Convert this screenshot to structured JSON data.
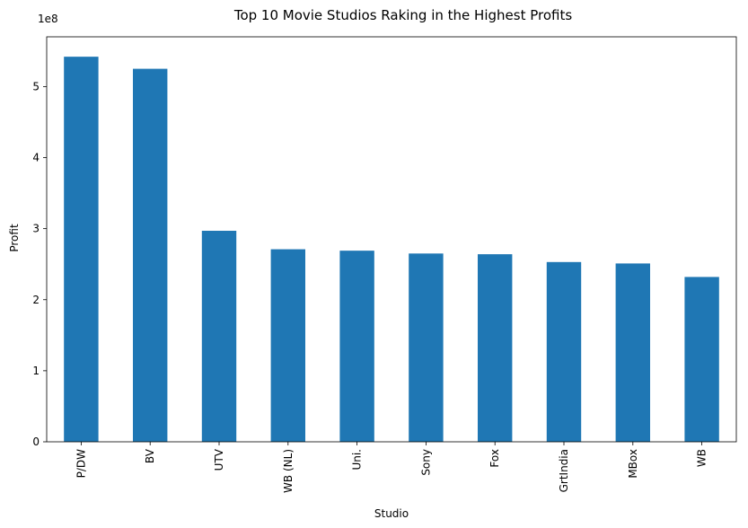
{
  "chart_data": {
    "type": "bar",
    "title": "Top 10 Movie Studios Raking in the Highest Profits",
    "xlabel": "Studio",
    "ylabel": "Profit",
    "y_multiplier_label": "1e8",
    "categories": [
      "P/DW",
      "BV",
      "UTV",
      "WB (NL)",
      "Uni.",
      "Sony",
      "Fox",
      "GrtIndia",
      "MBox",
      "WB"
    ],
    "values": [
      542000000,
      525000000,
      297000000,
      271000000,
      269000000,
      265000000,
      264000000,
      253000000,
      251000000,
      232000000
    ],
    "ylim": [
      0,
      570000000
    ],
    "yticks": [
      0,
      100000000,
      200000000,
      300000000,
      400000000,
      500000000
    ],
    "ytick_labels": [
      "0",
      "1",
      "2",
      "3",
      "4",
      "5"
    ],
    "bar_color": "#1f77b4",
    "grid": false
  }
}
